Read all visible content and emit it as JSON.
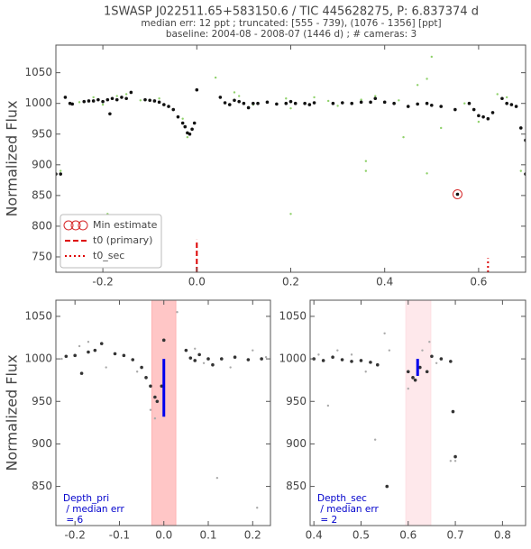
{
  "chart_data": [
    {
      "type": "scatter",
      "title": "1SWASP J022511.65+583150.6 / TIC 445628275, P: 6.837374 d",
      "subtitle": [
        "median err: 12 ppt ; truncated: [555 - 739), (1076 - 1356] [ppt]",
        "baseline: 2004-08 - 2008-07 (1446 d)  ;  # cameras: 3"
      ],
      "ylabel": "Normalized Flux",
      "xlim": [
        -0.3,
        0.7
      ],
      "ylim": [
        725,
        1095
      ],
      "xticks": [
        -0.2,
        {
          "value": 0,
          "label": "0.0"
        },
        0.2,
        0.4,
        0.6
      ],
      "yticks": [
        750,
        800,
        850,
        900,
        950,
        1000,
        1050
      ],
      "legend": "lower left",
      "series": [
        {
          "color": "#8fd16a",
          "size": 1.2,
          "x": [
            -0.25,
            -0.22,
            -0.2,
            -0.17,
            -0.15,
            -0.12,
            -0.08,
            -0.03,
            -0.02,
            0.04,
            0.08,
            0.09,
            0.12,
            0.19,
            0.2,
            0.25,
            0.28,
            0.3,
            0.35,
            0.38,
            0.43,
            0.44,
            0.47,
            0.49,
            0.5,
            0.52,
            0.57,
            0.6,
            0.64,
            0.66,
            0.69,
            -0.29,
            -0.19,
            0.2,
            0.36,
            0.36,
            0.49
          ],
          "values": [
            1002,
            1010,
            998,
            1012,
            1015,
            1005,
            1008,
            975,
            945,
            1042,
            1018,
            1012,
            998,
            1008,
            992,
            1010,
            1004,
            996,
            1006,
            1012,
            1005,
            945,
            1030,
            1040,
            1076,
            960,
            1000,
            970,
            1015,
            1010,
            890,
            890,
            820,
            820,
            890,
            906,
            886
          ]
        },
        {
          "color": "#111111",
          "size": 1.8,
          "x": [
            -0.3,
            -0.29,
            -0.28,
            -0.27,
            -0.265,
            -0.24,
            -0.23,
            -0.22,
            -0.21,
            -0.2,
            -0.19,
            -0.185,
            -0.18,
            -0.17,
            -0.16,
            -0.15,
            -0.14,
            -0.11,
            -0.1,
            -0.09,
            -0.08,
            -0.07,
            -0.06,
            -0.05,
            -0.04,
            -0.03,
            -0.025,
            -0.02,
            -0.015,
            -0.01,
            -0.005,
            0.0,
            0.05,
            0.06,
            0.07,
            0.08,
            0.09,
            0.1,
            0.11,
            0.12,
            0.13,
            0.15,
            0.17,
            0.19,
            0.2,
            0.21,
            0.23,
            0.24,
            0.25,
            0.29,
            0.31,
            0.33,
            0.35,
            0.37,
            0.38,
            0.4,
            0.42,
            0.45,
            0.47,
            0.49,
            0.5,
            0.52,
            0.55,
            0.58,
            0.59,
            0.6,
            0.61,
            0.62,
            0.63,
            0.65,
            0.66,
            0.67,
            0.68,
            0.69,
            0.7,
            0.7
          ],
          "values": [
            885,
            885,
            1010,
            1000,
            999,
            1003,
            1004,
            1004,
            1006,
            1003,
            1006,
            983,
            1008,
            1006,
            1010,
            1008,
            1018,
            1006,
            1005,
            1004,
            1002,
            998,
            995,
            990,
            978,
            968,
            962,
            952,
            950,
            958,
            968,
            1022,
            1010,
            1001,
            998,
            1005,
            1003,
            1000,
            993,
            1000,
            1000,
            1002,
            999,
            1000,
            1003,
            1000,
            1000,
            998,
            1001,
            1000,
            1001,
            1000,
            1002,
            1002,
            1008,
            1002,
            1000,
            995,
            999,
            1000,
            997,
            995,
            990,
            1000,
            990,
            980,
            978,
            975,
            985,
            1008,
            1000,
            998,
            995,
            960,
            940,
            885
          ]
        },
        {
          "name": "Min estimate",
          "color": "#d62728",
          "marker": "circle",
          "x": [
            0.555
          ],
          "values": [
            852
          ]
        }
      ],
      "vlines": [
        {
          "name": "t0 (primary)",
          "color": "#dd0000",
          "dash": "dashed",
          "x": 0,
          "y": [
            725,
            778
          ]
        },
        {
          "name": "t0_sec",
          "color": "#dd0000",
          "dash": "dotted",
          "x": 0.62,
          "y": [
            725,
            748
          ]
        }
      ]
    },
    {
      "type": "scatter",
      "ylabel": "Normalized Flux",
      "xlim": [
        -0.243,
        0.24
      ],
      "ylim": [
        804,
        1069
      ],
      "xticks": [
        -0.2,
        -0.1,
        {
          "value": 0,
          "label": "0.0"
        },
        0.1,
        0.2
      ],
      "yticks": [
        850,
        900,
        950,
        1000,
        1050
      ],
      "span": [
        -0.027,
        0.027
      ],
      "span_color": "#ffb3b3",
      "depth_bar": {
        "color": "#0000ee",
        "x": 0,
        "y": [
          932,
          1000
        ]
      },
      "annotation": [
        "Depth_pri",
        " / median err",
        " = 6"
      ],
      "series": [
        {
          "color": "#aaaaaa",
          "size": 1.2,
          "x": [
            -0.23,
            -0.19,
            -0.17,
            -0.13,
            -0.06,
            -0.03,
            -0.02,
            0.03,
            0.07,
            0.09,
            0.12,
            0.15,
            0.2,
            0.21,
            0.23
          ],
          "values": [
            1000,
            1015,
            1020,
            990,
            985,
            940,
            930,
            1055,
            1012,
            995,
            860,
            990,
            1010,
            825,
            1002
          ]
        },
        {
          "color": "#333333",
          "size": 1.8,
          "x": [
            -0.22,
            -0.2,
            -0.185,
            -0.17,
            -0.155,
            -0.14,
            -0.11,
            -0.09,
            -0.07,
            -0.05,
            -0.04,
            -0.03,
            -0.02,
            -0.015,
            -0.005,
            0.0,
            0.05,
            0.06,
            0.07,
            0.08,
            0.1,
            0.11,
            0.13,
            0.16,
            0.19,
            0.22
          ],
          "values": [
            1003,
            1004,
            983,
            1008,
            1010,
            1018,
            1006,
            1004,
            999,
            990,
            978,
            968,
            955,
            950,
            968,
            1022,
            1010,
            1001,
            998,
            1005,
            1000,
            993,
            1000,
            1002,
            999,
            1000
          ]
        }
      ]
    },
    {
      "type": "scatter",
      "xlim": [
        0.392,
        0.849
      ],
      "ylim": [
        804,
        1069
      ],
      "xticks": [
        0.4,
        0.5,
        0.6,
        0.7,
        0.8
      ],
      "yticks": [
        850,
        900,
        950,
        1000,
        1050
      ],
      "span": [
        0.595,
        0.648
      ],
      "span_color": "#fde0e4",
      "depth_bar": {
        "color": "#0000ee",
        "x": 0.62,
        "y": [
          980,
          1000
        ]
      },
      "annotation": [
        "Depth_sec",
        " / median err",
        " = 2"
      ],
      "series": [
        {
          "color": "#aaaaaa",
          "size": 1.2,
          "x": [
            0.39,
            0.41,
            0.43,
            0.45,
            0.48,
            0.51,
            0.55,
            0.56,
            0.6,
            0.63,
            0.645,
            0.66,
            0.69,
            0.7,
            0.53
          ],
          "values": [
            1000,
            1005,
            945,
            1010,
            1005,
            985,
            1030,
            1010,
            965,
            1010,
            1020,
            995,
            880,
            880,
            905
          ]
        },
        {
          "color": "#333333",
          "size": 1.8,
          "x": [
            0.4,
            0.42,
            0.44,
            0.46,
            0.48,
            0.5,
            0.52,
            0.535,
            0.555,
            0.6,
            0.61,
            0.615,
            0.625,
            0.64,
            0.65,
            0.67,
            0.69,
            0.695,
            0.7
          ],
          "values": [
            1000,
            998,
            1002,
            999,
            997,
            998,
            996,
            993,
            850,
            985,
            978,
            975,
            990,
            985,
            1003,
            1000,
            997,
            938,
            885
          ]
        }
      ]
    }
  ]
}
